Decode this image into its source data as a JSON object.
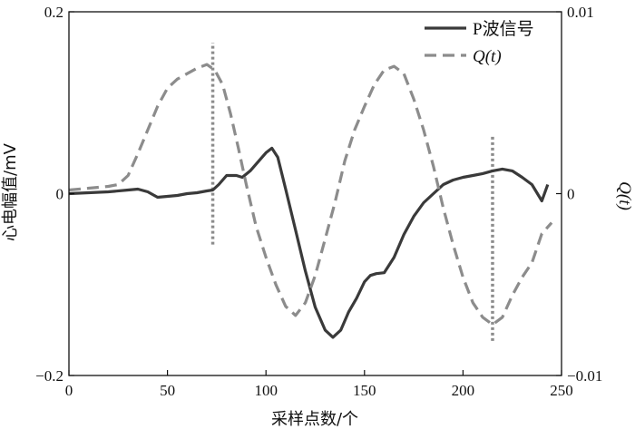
{
  "chart_data": {
    "type": "line",
    "title": "",
    "xlabel": "采样点数/个",
    "ylabel": "心电幅值/mV",
    "y2label": "Q(t)",
    "xlim": [
      0,
      250
    ],
    "ylim": [
      -0.2,
      0.2
    ],
    "y2lim": [
      -0.01,
      0.01
    ],
    "x_ticks": [
      0,
      50,
      100,
      150,
      200,
      250
    ],
    "x_tick_labels": [
      "0",
      "50",
      "100",
      "150",
      "200",
      "250"
    ],
    "y_ticks": [
      -0.2,
      0,
      0.2
    ],
    "y_tick_labels": [
      "−0.2",
      "0",
      "0.2"
    ],
    "y2_ticks": [
      -0.01,
      0,
      0.01
    ],
    "y2_tick_labels": [
      "−0.01",
      "0",
      "0.01"
    ],
    "grid": false,
    "legend_position": "top-right",
    "series": [
      {
        "name": "P波信号",
        "axis": "left",
        "style": "solid",
        "color": "#3a3a3a",
        "x": [
          0,
          10,
          20,
          30,
          35,
          40,
          45,
          50,
          55,
          60,
          65,
          70,
          73,
          76,
          80,
          85,
          88,
          92,
          96,
          100,
          103,
          106,
          110,
          115,
          120,
          125,
          130,
          134,
          138,
          142,
          146,
          150,
          153,
          156,
          160,
          165,
          170,
          175,
          180,
          185,
          190,
          195,
          200,
          205,
          210,
          215,
          220,
          225,
          230,
          235,
          240,
          243
        ],
        "y": [
          0.0,
          0.001,
          0.002,
          0.004,
          0.005,
          0.002,
          -0.004,
          -0.003,
          -0.002,
          0.0,
          0.001,
          0.003,
          0.004,
          0.01,
          0.02,
          0.02,
          0.018,
          0.025,
          0.035,
          0.045,
          0.05,
          0.04,
          0.005,
          -0.04,
          -0.085,
          -0.125,
          -0.15,
          -0.158,
          -0.15,
          -0.13,
          -0.115,
          -0.097,
          -0.09,
          -0.088,
          -0.087,
          -0.07,
          -0.045,
          -0.025,
          -0.01,
          0.0,
          0.01,
          0.015,
          0.018,
          0.02,
          0.022,
          0.025,
          0.027,
          0.025,
          0.018,
          0.01,
          -0.008,
          0.01
        ]
      },
      {
        "name": "Q(t)",
        "axis": "right",
        "style": "dashed",
        "color": "#8c8c8c",
        "x": [
          0,
          10,
          20,
          25,
          30,
          35,
          40,
          45,
          50,
          55,
          60,
          65,
          70,
          74,
          78,
          82,
          86,
          90,
          95,
          100,
          105,
          110,
          115,
          120,
          125,
          130,
          135,
          140,
          145,
          150,
          155,
          160,
          165,
          170,
          175,
          180,
          185,
          190,
          195,
          200,
          205,
          210,
          215,
          220,
          225,
          230,
          235,
          240,
          245
        ],
        "y": [
          0.0002,
          0.0003,
          0.0004,
          0.0005,
          0.001,
          0.0022,
          0.0035,
          0.0048,
          0.0058,
          0.0063,
          0.0066,
          0.0069,
          0.0071,
          0.0068,
          0.006,
          0.0044,
          0.0025,
          0.0005,
          -0.0018,
          -0.0035,
          -0.005,
          -0.0062,
          -0.0067,
          -0.006,
          -0.0045,
          -0.0025,
          -0.0005,
          0.0018,
          0.0035,
          0.0048,
          0.006,
          0.0068,
          0.007,
          0.0066,
          0.0052,
          0.0035,
          0.0015,
          -0.0008,
          -0.0028,
          -0.0046,
          -0.006,
          -0.0068,
          -0.0072,
          -0.0068,
          -0.0056,
          -0.0046,
          -0.0038,
          -0.0022,
          -0.0016
        ]
      }
    ],
    "markers": [
      {
        "x": 73,
        "y_from": -0.0028,
        "y_to": 0.0083,
        "axis": "right",
        "style": "dotted"
      },
      {
        "x": 215,
        "y_from": -0.0081,
        "y_to": 0.0032,
        "axis": "right",
        "style": "dotted"
      }
    ],
    "legend": {
      "entries": [
        {
          "label": "P波信号",
          "style": "solid"
        },
        {
          "label": "Q(t)",
          "style": "dashed"
        }
      ]
    }
  }
}
